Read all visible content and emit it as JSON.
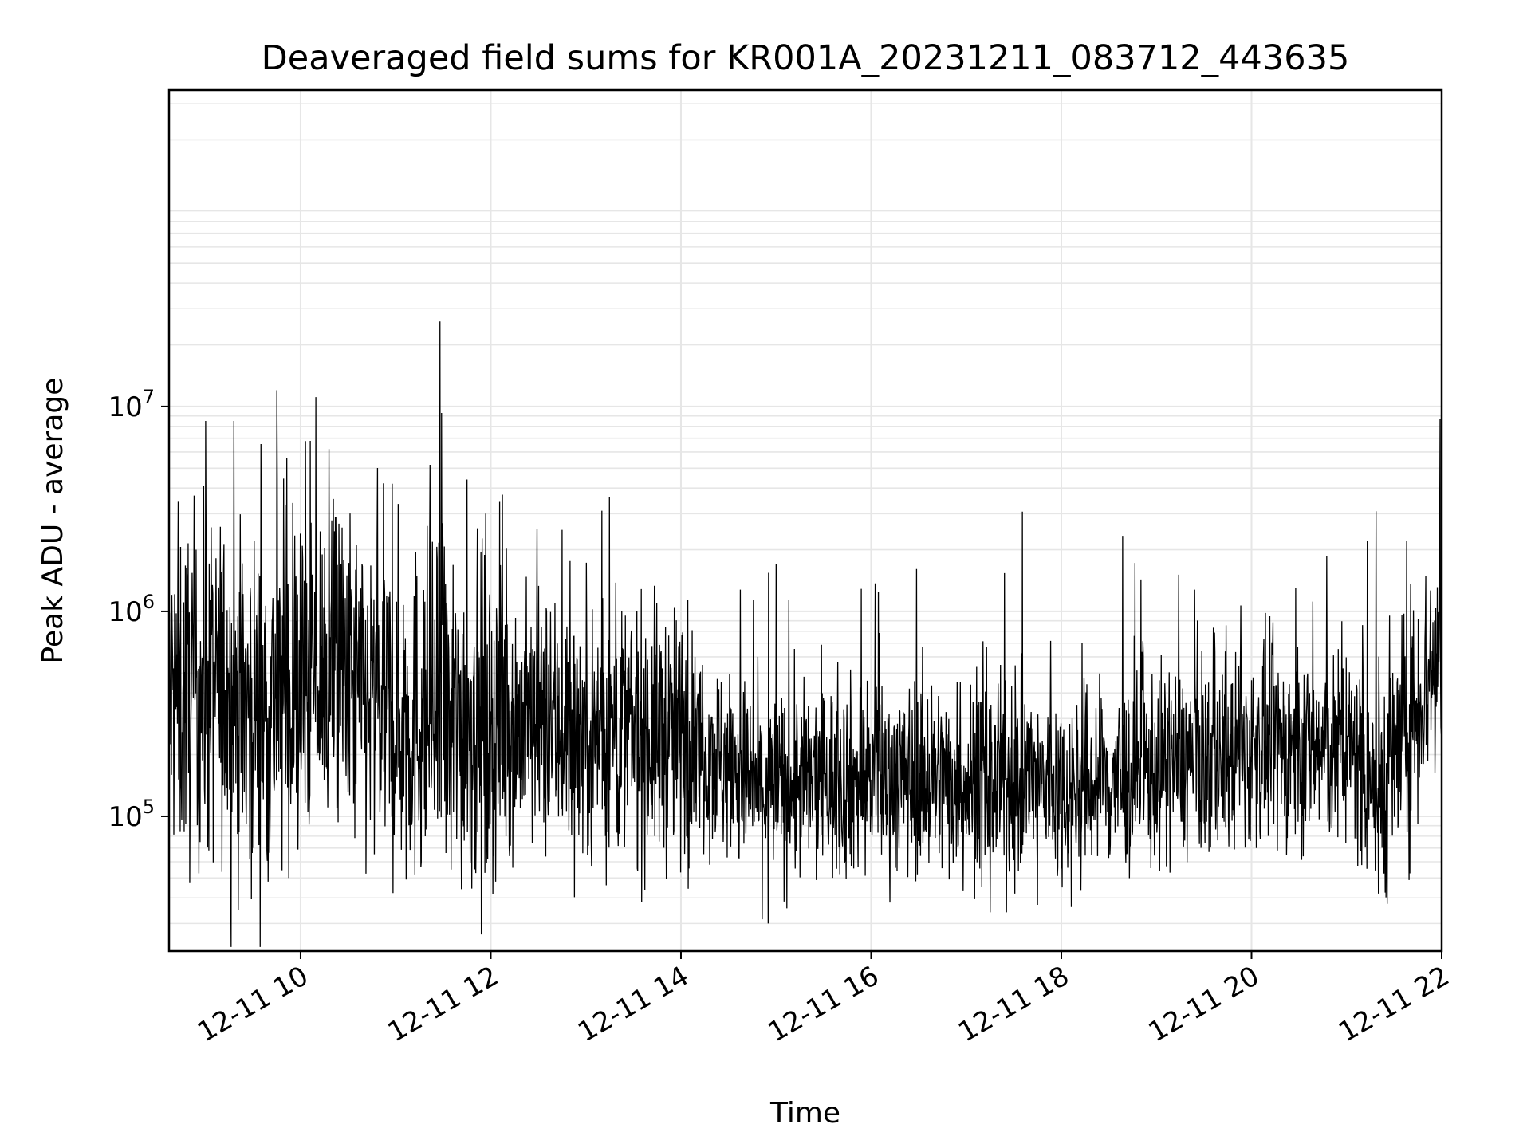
{
  "chart_data": {
    "type": "line",
    "title": "Deaveraged field sums for KR001A_20231211_083712_443635",
    "xlabel": "Time",
    "ylabel": "Peak ADU - average",
    "x_range": [
      "2023-12-11 08:37",
      "2023-12-11 22:00"
    ],
    "x_ticks": [
      "12-11 10",
      "12-11 12",
      "12-11 14",
      "12-11 16",
      "12-11 18",
      "12-11 20",
      "12-11 22"
    ],
    "y_scale": "log",
    "ylim": [
      22000,
      350000000
    ],
    "y_ticks": [
      {
        "value": 100000,
        "base": "10",
        "exp": "5"
      },
      {
        "value": 1000000,
        "base": "10",
        "exp": "6"
      },
      {
        "value": 10000000,
        "base": "10",
        "exp": "7"
      }
    ],
    "grid": true,
    "line_color": "#000000",
    "grid_color": "#e6e6e6",
    "series": [
      {
        "x": [
          "2023-12-11 08:37",
          "2023-12-11 08:52",
          "2023-12-11 09:07",
          "2023-12-11 09:22",
          "2023-12-11 09:37",
          "2023-12-11 09:52",
          "2023-12-11 10:07",
          "2023-12-11 10:22",
          "2023-12-11 10:37",
          "2023-12-11 10:52",
          "2023-12-11 11:07",
          "2023-12-11 11:22",
          "2023-12-11 11:37",
          "2023-12-11 11:52",
          "2023-12-11 12:07",
          "2023-12-11 12:22",
          "2023-12-11 12:37",
          "2023-12-11 12:52",
          "2023-12-11 13:07",
          "2023-12-11 13:22",
          "2023-12-11 13:37",
          "2023-12-11 13:52",
          "2023-12-11 14:07",
          "2023-12-11 14:22",
          "2023-12-11 14:37",
          "2023-12-11 14:52",
          "2023-12-11 15:07",
          "2023-12-11 15:22",
          "2023-12-11 15:37",
          "2023-12-11 15:52",
          "2023-12-11 16:07",
          "2023-12-11 16:22",
          "2023-12-11 16:37",
          "2023-12-11 16:52",
          "2023-12-11 17:07",
          "2023-12-11 17:22",
          "2023-12-11 17:37",
          "2023-12-11 17:52",
          "2023-12-11 18:07",
          "2023-12-11 18:22",
          "2023-12-11 18:37",
          "2023-12-11 18:52",
          "2023-12-11 19:07",
          "2023-12-11 19:22",
          "2023-12-11 19:37",
          "2023-12-11 19:52",
          "2023-12-11 20:07",
          "2023-12-11 20:22",
          "2023-12-11 20:37",
          "2023-12-11 20:52",
          "2023-12-11 21:07",
          "2023-12-11 21:22",
          "2023-12-11 21:37",
          "2023-12-11 21:52",
          "2023-12-11 22:00"
        ],
        "y": [
          380000,
          400000,
          420000,
          350000,
          330000,
          360000,
          480000,
          520000,
          380000,
          320000,
          300000,
          320000,
          300000,
          290000,
          280000,
          280000,
          270000,
          265000,
          260000,
          255000,
          250000,
          250000,
          240000,
          200000,
          160000,
          130000,
          140000,
          145000,
          150000,
          150000,
          160000,
          155000,
          150000,
          150000,
          145000,
          145000,
          150000,
          140000,
          135000,
          145000,
          150000,
          160000,
          180000,
          190000,
          185000,
          200000,
          220000,
          215000,
          210000,
          205000,
          200000,
          140000,
          250000,
          500000,
          600000
        ],
        "spikes": [
          {
            "x": "2023-12-11 09:45",
            "y": 12000000
          },
          {
            "x": "2023-12-11 11:28",
            "y": 26000000
          },
          {
            "x": "2023-12-11 11:29",
            "y": 9300000
          },
          {
            "x": "2023-12-11 09:00",
            "y": 8500000
          },
          {
            "x": "2023-12-11 09:18",
            "y": 8500000
          },
          {
            "x": "2023-12-11 10:06",
            "y": 6800000
          },
          {
            "x": "2023-12-11 10:18",
            "y": 6200000
          },
          {
            "x": "2023-12-11 11:45",
            "y": 4400000
          },
          {
            "x": "2023-12-11 12:45",
            "y": 2500000
          },
          {
            "x": "2023-12-11 13:10",
            "y": 3100000
          },
          {
            "x": "2023-12-11 13:15",
            "y": 3600000
          },
          {
            "x": "2023-12-11 15:00",
            "y": 1700000
          },
          {
            "x": "2023-12-11 21:13",
            "y": 2200000
          },
          {
            "x": "2023-12-11 20:28",
            "y": 1300000
          },
          {
            "x": "2023-12-11 21:59",
            "y": 8700000
          },
          {
            "x": "2023-12-11 14:55",
            "y": 30000
          },
          {
            "x": "2023-12-11 17:15",
            "y": 34000
          },
          {
            "x": "2023-12-11 17:45",
            "y": 37000
          },
          {
            "x": "2023-12-11 09:28",
            "y": 62000
          },
          {
            "x": "2023-12-11 11:35",
            "y": 55000
          },
          {
            "x": "2023-12-11 21:20",
            "y": 42000
          }
        ]
      }
    ]
  }
}
